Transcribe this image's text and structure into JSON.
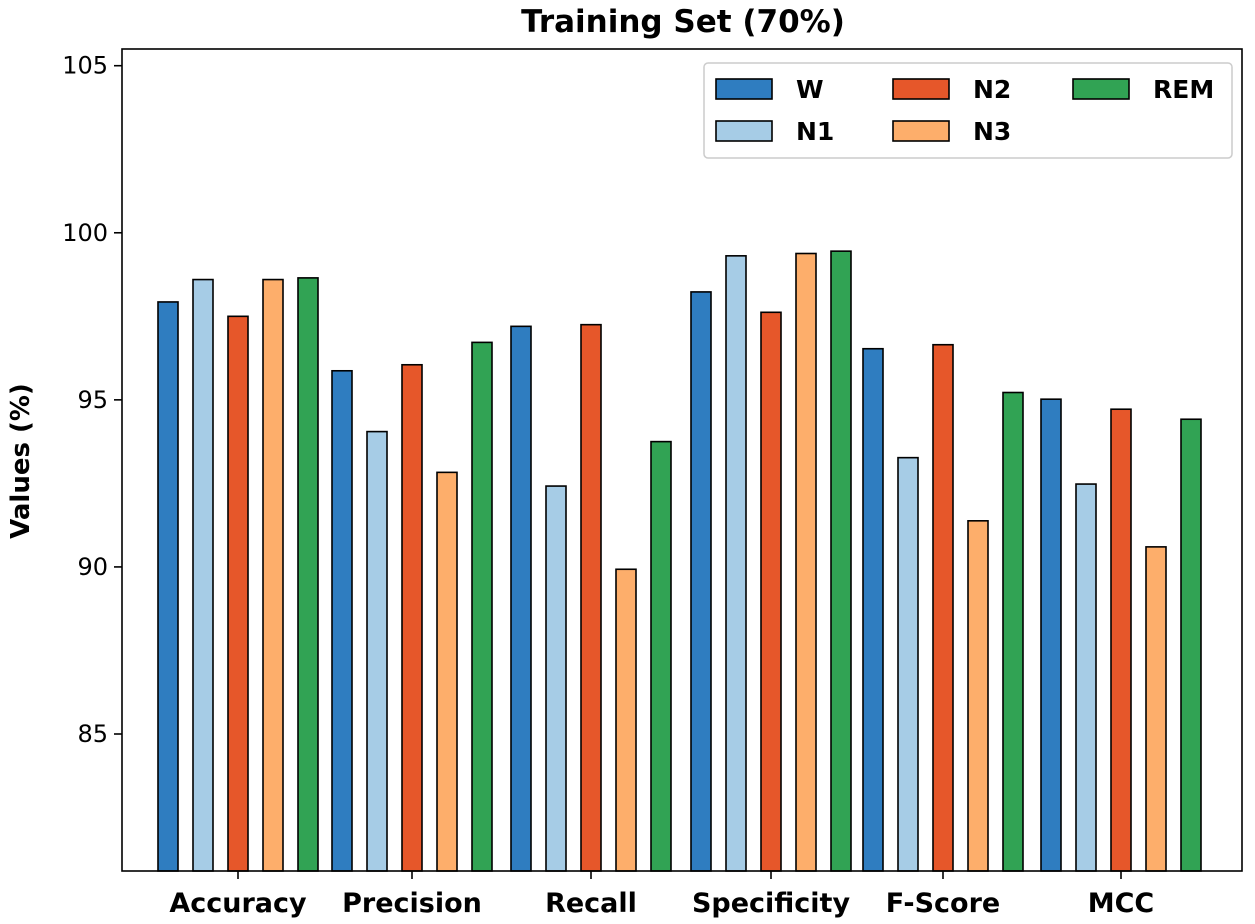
{
  "chart_data": {
    "type": "bar",
    "title": "Training Set (70%)",
    "xlabel": "",
    "ylabel": "Values (%)",
    "ylim": [
      80.9,
      105.5
    ],
    "yticks": [
      85,
      90,
      95,
      100,
      105
    ],
    "grid": false,
    "legend_position": "top-right",
    "categories": [
      "Accuracy",
      "Precision",
      "Recall",
      "Specificity",
      "F-Score",
      "MCC"
    ],
    "series": [
      {
        "name": "W",
        "color": "#2f7dc0",
        "values": [
          97.93,
          95.87,
          97.2,
          98.23,
          96.53,
          95.02
        ]
      },
      {
        "name": "N1",
        "color": "#a6cce6",
        "values": [
          98.6,
          94.05,
          92.42,
          99.31,
          93.27,
          92.48
        ]
      },
      {
        "name": "N2",
        "color": "#e6572a",
        "values": [
          97.5,
          96.05,
          97.25,
          97.62,
          96.65,
          94.72
        ]
      },
      {
        "name": "N3",
        "color": "#fdae6b",
        "values": [
          98.6,
          92.83,
          89.93,
          99.38,
          91.38,
          90.6
        ]
      },
      {
        "name": "REM",
        "color": "#31a354",
        "values": [
          98.65,
          96.72,
          93.75,
          99.45,
          95.22,
          94.42
        ]
      }
    ]
  }
}
